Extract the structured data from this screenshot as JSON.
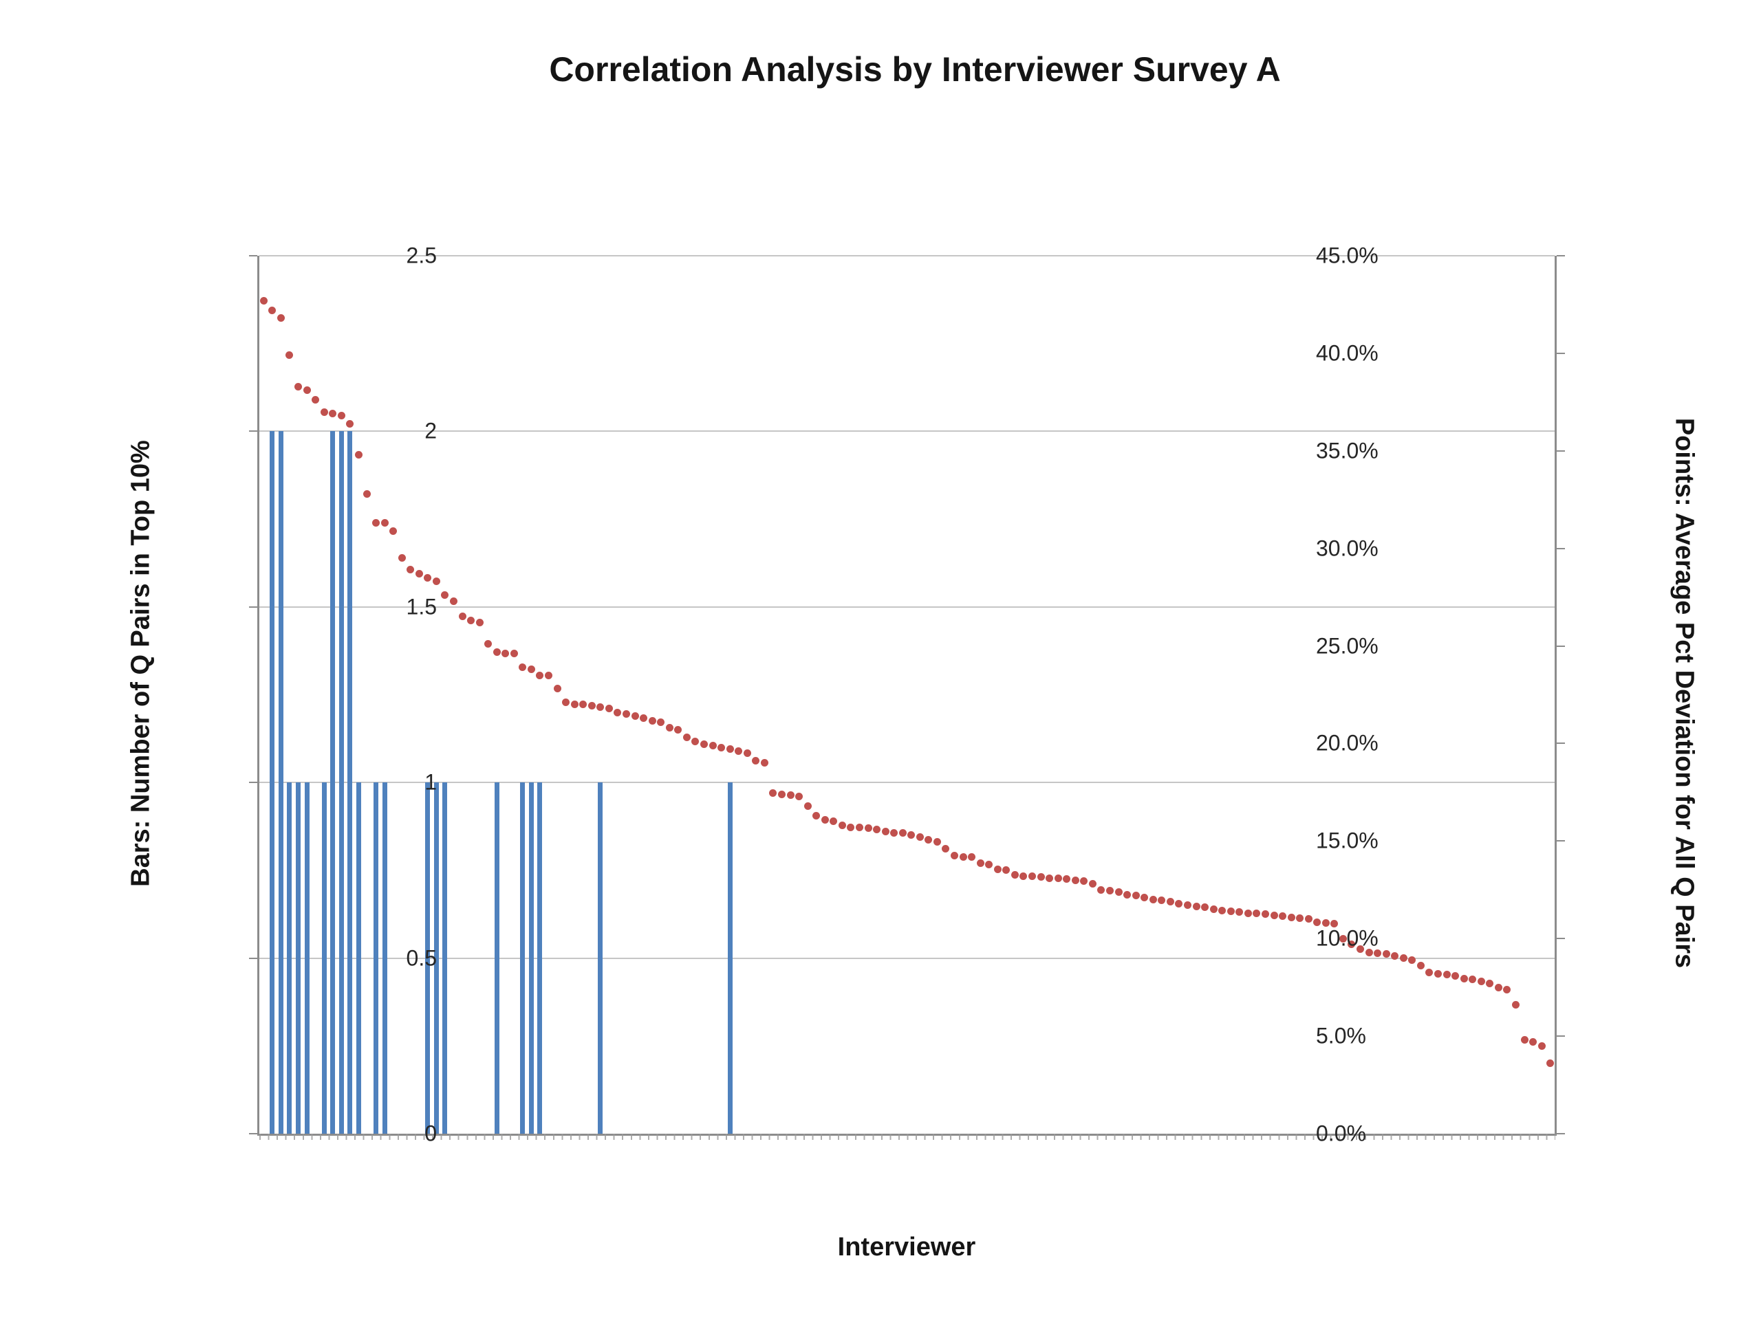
{
  "title": "Correlation Analysis by Interviewer Survey A",
  "x_axis": {
    "label": "Interviewer"
  },
  "left_axis": {
    "label": "Bars: Number of Q Pairs in Top 10%",
    "ticks": [
      "2.5",
      "2",
      "1.5",
      "1",
      "0.5",
      "0"
    ],
    "max": 2.5,
    "min": 0
  },
  "right_axis": {
    "label": "Points: Average Pct Deviation for All Q Pairs",
    "ticks": [
      "45.0%",
      "40.0%",
      "35.0%",
      "30.0%",
      "25.0%",
      "20.0%",
      "15.0%",
      "10.0%",
      "5.0%",
      "0.0%"
    ],
    "max": 45,
    "min": 0
  },
  "colors": {
    "bar": "#4f81bd",
    "point": "#c0504d",
    "gridline": "#c6c6c6",
    "axis": "#8c8c8c",
    "text": "#151515"
  },
  "chart_data": {
    "type": "combo",
    "title": "Correlation Analysis by Interviewer Survey A",
    "xlabel": "Interviewer",
    "categories_note": "150 unlabeled interviewer categories, sorted by descending deviation",
    "n_categories": 150,
    "grid": "horizontal",
    "legend": "none",
    "series": [
      {
        "name": "Bars: Number of Q Pairs in Top 10%",
        "type": "bar",
        "axis": "left",
        "ylim": [
          0,
          2.5
        ],
        "bars": [
          {
            "slot": 2,
            "value": 2
          },
          {
            "slot": 3,
            "value": 2
          },
          {
            "slot": 4,
            "value": 1
          },
          {
            "slot": 5,
            "value": 1
          },
          {
            "slot": 6,
            "value": 1
          },
          {
            "slot": 8,
            "value": 1
          },
          {
            "slot": 9,
            "value": 2
          },
          {
            "slot": 10,
            "value": 2
          },
          {
            "slot": 11,
            "value": 2
          },
          {
            "slot": 12,
            "value": 1
          },
          {
            "slot": 14,
            "value": 1
          },
          {
            "slot": 15,
            "value": 1
          },
          {
            "slot": 20,
            "value": 1
          },
          {
            "slot": 21,
            "value": 1
          },
          {
            "slot": 22,
            "value": 1
          },
          {
            "slot": 28,
            "value": 1
          },
          {
            "slot": 31,
            "value": 1
          },
          {
            "slot": 32,
            "value": 1
          },
          {
            "slot": 33,
            "value": 1
          },
          {
            "slot": 40,
            "value": 1
          },
          {
            "slot": 55,
            "value": 1
          }
        ]
      },
      {
        "name": "Points: Average Pct Deviation for All Q Pairs",
        "type": "scatter",
        "axis": "right",
        "ylim": [
          0,
          45
        ],
        "unit": "%",
        "values": [
          42.7,
          42.2,
          41.8,
          39.9,
          38.3,
          38.1,
          37.6,
          37.0,
          36.9,
          36.8,
          36.4,
          34.8,
          32.8,
          31.3,
          31.3,
          30.9,
          29.5,
          28.9,
          28.7,
          28.5,
          28.3,
          27.6,
          27.3,
          26.5,
          26.3,
          26.2,
          25.1,
          24.7,
          24.6,
          24.6,
          23.9,
          23.8,
          23.5,
          23.5,
          22.8,
          22.1,
          22.0,
          22.0,
          21.95,
          21.85,
          21.8,
          21.6,
          21.5,
          21.4,
          21.3,
          21.15,
          21.1,
          20.8,
          20.7,
          20.3,
          20.1,
          19.95,
          19.9,
          19.8,
          19.7,
          19.6,
          19.5,
          19.1,
          19.0,
          17.45,
          17.4,
          17.35,
          17.3,
          16.8,
          16.3,
          16.1,
          16.0,
          15.8,
          15.7,
          15.7,
          15.65,
          15.6,
          15.5,
          15.4,
          15.4,
          15.3,
          15.2,
          15.05,
          14.95,
          14.6,
          14.25,
          14.2,
          14.2,
          13.85,
          13.8,
          13.55,
          13.5,
          13.25,
          13.2,
          13.2,
          13.15,
          13.1,
          13.1,
          13.05,
          13.0,
          12.95,
          12.8,
          12.5,
          12.45,
          12.4,
          12.25,
          12.2,
          12.1,
          12.0,
          11.95,
          11.9,
          11.8,
          11.7,
          11.65,
          11.6,
          11.5,
          11.45,
          11.4,
          11.35,
          11.3,
          11.3,
          11.25,
          11.2,
          11.15,
          11.1,
          11.05,
          11.0,
          10.85,
          10.8,
          10.75,
          10.0,
          9.7,
          9.45,
          9.3,
          9.25,
          9.2,
          9.1,
          9.0,
          8.9,
          8.6,
          8.25,
          8.2,
          8.15,
          8.1,
          7.95,
          7.9,
          7.8,
          7.7,
          7.5,
          7.4,
          6.6,
          4.8,
          4.7,
          4.5,
          3.6
        ]
      }
    ]
  }
}
